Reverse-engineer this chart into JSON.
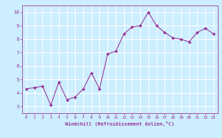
{
  "x": [
    0,
    1,
    2,
    3,
    4,
    5,
    6,
    7,
    8,
    9,
    10,
    11,
    12,
    13,
    14,
    15,
    16,
    17,
    18,
    19,
    20,
    21,
    22,
    23
  ],
  "y": [
    4.3,
    4.4,
    4.5,
    3.1,
    4.8,
    3.5,
    3.7,
    4.3,
    5.5,
    4.3,
    6.9,
    7.1,
    8.4,
    8.9,
    9.0,
    10.0,
    9.0,
    8.5,
    8.1,
    8.0,
    7.8,
    8.5,
    8.8,
    8.4
  ],
  "line_color": "#993399",
  "marker": "D",
  "marker_size": 2,
  "bg_color": "#cceeff",
  "grid_color": "#ffffff",
  "xlabel": "Windchill (Refroidissement éolien,°C)",
  "xlabel_color": "#993399",
  "tick_color": "#993399",
  "ylim": [
    2.5,
    10.5
  ],
  "xlim": [
    -0.5,
    23.5
  ],
  "yticks": [
    3,
    4,
    5,
    6,
    7,
    8,
    9,
    10
  ],
  "xticks": [
    0,
    1,
    2,
    3,
    4,
    5,
    6,
    7,
    8,
    9,
    10,
    11,
    12,
    13,
    14,
    15,
    16,
    17,
    18,
    19,
    20,
    21,
    22,
    23
  ]
}
